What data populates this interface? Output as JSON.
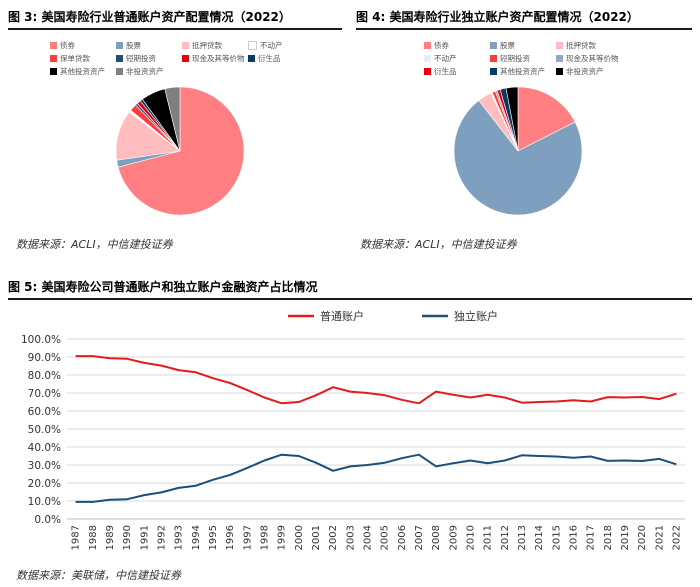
{
  "fig3": {
    "title": "图 3: 美国寿险行业普通账户资产配置情况（2022）",
    "source": "数据来源：ACLI，中信建投证券"
  },
  "fig4": {
    "title": "图 4: 美国寿险行业独立账户资产配置情况（2022）",
    "source": "数据来源：ACLI，中信建投证券"
  },
  "fig5": {
    "title": "图 5: 美国寿险公司普通账户和独立账户金融资产占比情况",
    "source": "数据来源：美联储，中信建投证券"
  },
  "chart_data": [
    {
      "type": "pie",
      "labels": [
        "债券",
        "股票",
        "抵押贷款",
        "不动产",
        "保单贷款",
        "短期投资",
        "现金及其等价物",
        "衍生品",
        "其他投资资产",
        "非投资资产"
      ],
      "colors": [
        "#FF7F83",
        "#7F9FBF",
        "#FFBDC0",
        "#FFFFFF",
        "#FF3B3B",
        "#1F4F79",
        "#E8000F",
        "#0A3A66",
        "#000000",
        "#7F7F7F"
      ],
      "values": [
        72.5,
        1.8,
        13.0,
        0.6,
        1.8,
        0.6,
        1.0,
        0.7,
        6.3,
        3.9
      ],
      "legend_rows": [
        [
          0,
          1,
          2,
          3
        ],
        [
          4,
          5,
          6,
          7
        ],
        [
          8,
          9
        ]
      ]
    },
    {
      "type": "pie",
      "labels": [
        "债券",
        "股票",
        "抵押贷款",
        "不动产",
        "短期投资",
        "现金及其等价物",
        "衍生品",
        "其他投资资产",
        "非投资资产"
      ],
      "colors": [
        "#FF7F83",
        "#7F9FBF",
        "#FFBDC0",
        "#E8EEF4",
        "#FF3B3B",
        "#8FA9C4",
        "#E8000F",
        "#0A3A66",
        "#000000"
      ],
      "values": [
        17.5,
        72.0,
        3.5,
        0.4,
        0.8,
        0.5,
        0.8,
        1.5,
        3.0
      ],
      "legend_rows": [
        [
          0,
          1,
          2
        ],
        [
          3,
          4,
          5
        ],
        [
          6,
          7,
          8
        ]
      ]
    },
    {
      "type": "line",
      "x": [
        "1987",
        "1988",
        "1989",
        "1990",
        "1991",
        "1992",
        "1993",
        "1994",
        "1995",
        "1996",
        "1997",
        "1998",
        "1999",
        "2000",
        "2001",
        "2002",
        "2003",
        "2004",
        "2005",
        "2006",
        "2007",
        "2008",
        "2009",
        "2010",
        "2011",
        "2012",
        "2013",
        "2014",
        "2015",
        "2016",
        "2017",
        "2018",
        "2019",
        "2020",
        "2021",
        "2022"
      ],
      "series": [
        {
          "name": "普通账户",
          "color": "#E31B1B",
          "values": [
            90.5,
            90.5,
            89.3,
            89.0,
            86.7,
            85.2,
            82.7,
            81.5,
            78.2,
            75.5,
            71.6,
            67.5,
            64.3,
            65.0,
            68.7,
            73.2,
            70.8,
            70.0,
            68.8,
            66.2,
            64.3,
            70.8,
            69.0,
            67.5,
            69.0,
            67.5,
            64.6,
            65.0,
            65.3,
            66.0,
            65.3,
            67.7,
            67.5,
            67.8,
            66.6,
            69.6
          ]
        },
        {
          "name": "独立账户",
          "color": "#1B4F7A",
          "values": [
            9.5,
            9.5,
            10.7,
            11.0,
            13.3,
            14.8,
            17.3,
            18.5,
            21.8,
            24.5,
            28.4,
            32.5,
            35.7,
            35.0,
            31.3,
            26.8,
            29.2,
            30.0,
            31.2,
            33.8,
            35.7,
            29.2,
            31.0,
            32.5,
            31.0,
            32.5,
            35.4,
            35.0,
            34.7,
            34.0,
            34.7,
            32.3,
            32.5,
            32.2,
            33.4,
            30.4
          ]
        }
      ],
      "yticks": [
        "0.0%",
        "10.0%",
        "20.0%",
        "30.0%",
        "40.0%",
        "50.0%",
        "60.0%",
        "70.0%",
        "80.0%",
        "90.0%",
        "100.0%"
      ],
      "ylim": [
        0,
        100
      ],
      "legend_position": "top-center",
      "grid": true
    }
  ]
}
